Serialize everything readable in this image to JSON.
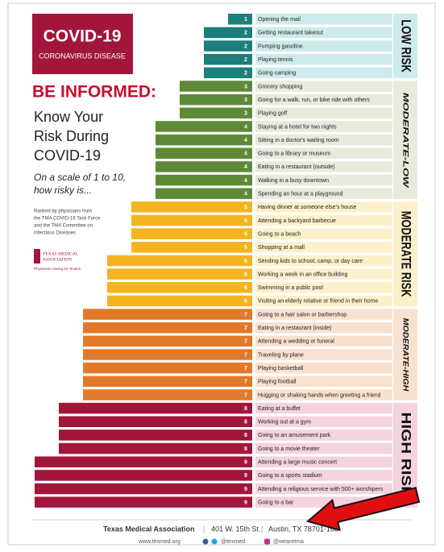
{
  "chart_data": {
    "type": "bar",
    "title": "COVID-19",
    "subtitle": "CORONAVIRUS DISEASE",
    "heading": "BE INFORMED:",
    "headline": [
      "Know Your",
      "Risk During",
      "COVID-19"
    ],
    "question": [
      "On a scale of 1 to 10,",
      "how risky is..."
    ],
    "note": [
      "Ranked by physicians from",
      "the TMA COVID-19 Task Force",
      "and the TMA Committee on",
      "Infectious Diseases"
    ],
    "logo": [
      "TEXAS MEDICAL",
      "ASSOCIATION",
      "Physicians Caring for Texans"
    ],
    "footer": {
      "org": "Texas Medical Association",
      "address": "401 W. 15th St.",
      "city": "Austin, TX 78701-168",
      "web": "www.texmed.org",
      "twitter": "@texmed",
      "instagram": "@wearetma"
    },
    "groups": [
      {
        "name": "LOW RISK",
        "color": "#1b7f7b",
        "band": "#cdebea",
        "categories": [
          "Opening the mail",
          "Getting restaurant takeout",
          "Pumping gasoline",
          "Playing tennis",
          "Going camping"
        ],
        "values": [
          1,
          2,
          2,
          2,
          2
        ]
      },
      {
        "name": "MODERATE-LOW",
        "color": "#5e8a37",
        "band": "#e6ebdd",
        "categories": [
          "Grocery shopping",
          "Going for a walk, run, or bike ride with others",
          "Playing golf",
          "Staying at a hotel for two nights",
          "Sitting in a doctor's waiting room",
          "Going to a library or museum",
          "Eating in a restaurant (outside)",
          "Walking in a busy downtown",
          "Spending an hour at a playground"
        ],
        "values": [
          3,
          3,
          3,
          4,
          4,
          4,
          4,
          4,
          4
        ]
      },
      {
        "name": "MODERATE RISK",
        "color": "#f3b41f",
        "band": "#fcf0cb",
        "categories": [
          "Having dinner at someone else's house",
          "Attending a backyard barbecue",
          "Going to a beach",
          "Shopping at a mall",
          "Sending kids to school, camp, or day care",
          "Working a week in an office building",
          "Swimming in a public pool",
          "Visiting an elderly relative or friend in their home"
        ],
        "values": [
          5,
          5,
          5,
          5,
          6,
          6,
          6,
          6
        ]
      },
      {
        "name": "MODERATE-HIGH",
        "color": "#e2792a",
        "band": "#f9e1cf",
        "categories": [
          "Going to a hair salon or barbershop",
          "Eating in a restaurant (inside)",
          "Attending a wedding or funeral",
          "Traveling by plane",
          "Playing basketball",
          "Playing football",
          "Hugging or shaking hands when greeting a friend"
        ],
        "values": [
          7,
          7,
          7,
          7,
          7,
          7,
          7
        ]
      },
      {
        "name": "HIGH RISK",
        "color": "#a3163c",
        "band": "#f4d3dd",
        "categories": [
          "Eating at a buffet",
          "Working out at a gym",
          "Going to an amusement park",
          "Going to a movie theater",
          "Attending a large music concert",
          "Going to a sports stadium",
          "Attending a religious service with 500+ worshipers",
          "Going to a bar"
        ],
        "values": [
          8,
          8,
          8,
          8,
          9,
          9,
          9,
          9
        ]
      }
    ]
  }
}
